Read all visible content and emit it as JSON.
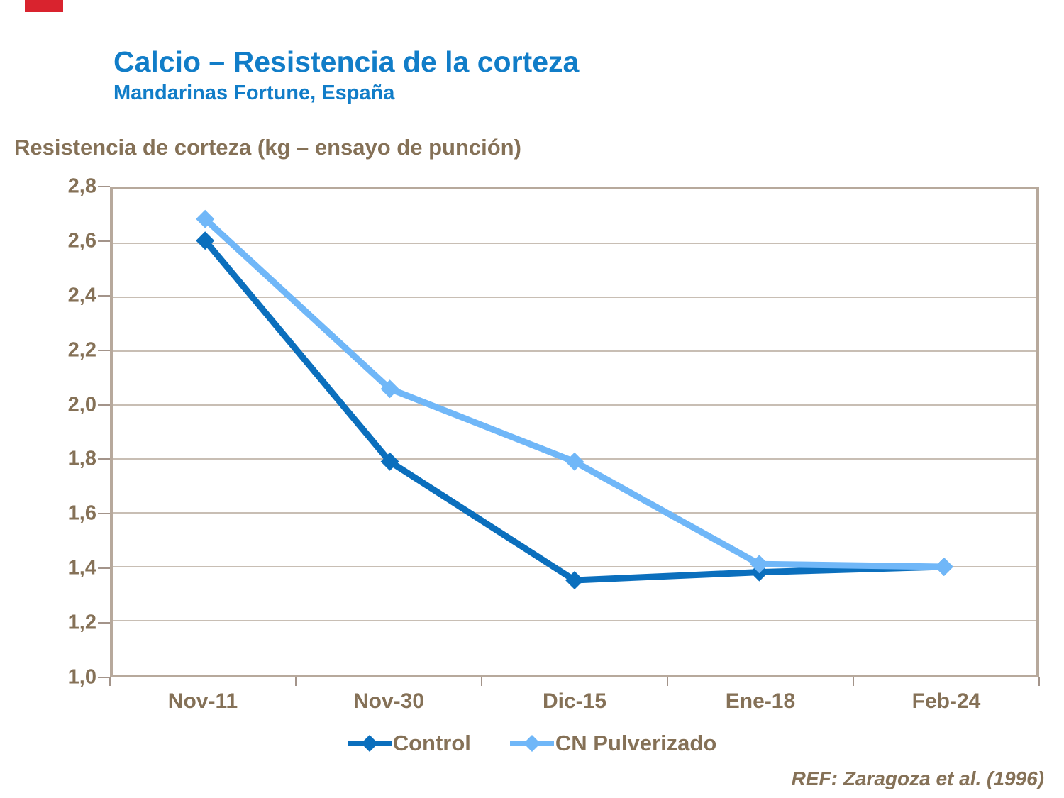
{
  "header": {
    "title": "Calcio – Resistencia de la corteza",
    "subtitle": "Mandarinas Fortune, España"
  },
  "chart_data": {
    "type": "line",
    "title": "Calcio – Resistencia de la corteza",
    "subtitle": "Mandarinas Fortune, España",
    "ylabel": "Resistencia de corteza (kg – ensayo de punción)",
    "xlabel": "",
    "categories": [
      "Nov-11",
      "Nov-30",
      "Dic-15",
      "Ene-18",
      "Feb-24"
    ],
    "series": [
      {
        "name": "Control",
        "values": [
          2.61,
          1.79,
          1.35,
          1.38,
          1.4
        ],
        "color": "#0b6fbd"
      },
      {
        "name": "CN Pulverizado",
        "values": [
          2.69,
          2.06,
          1.79,
          1.41,
          1.4
        ],
        "color": "#70b7f8"
      }
    ],
    "ylim": [
      1.0,
      2.8
    ],
    "y_ticks": [
      "2,8",
      "2,6",
      "2,4",
      "2,2",
      "2,0",
      "1,8",
      "1,6",
      "1,4",
      "1,2",
      "1,0"
    ],
    "grid": true,
    "legend_position": "bottom"
  },
  "footer": {
    "ref": "REF: Zaragoza et al. (1996)"
  },
  "colors": {
    "title_blue": "#117dc8",
    "text_brown": "#857157",
    "control_blue": "#0b6fbd",
    "cn_blue": "#70b7f8",
    "gridline": "#b5a89c",
    "plot_border": "#b7a99c",
    "tick": "#a3948a",
    "red_mark": "#d9232e"
  }
}
